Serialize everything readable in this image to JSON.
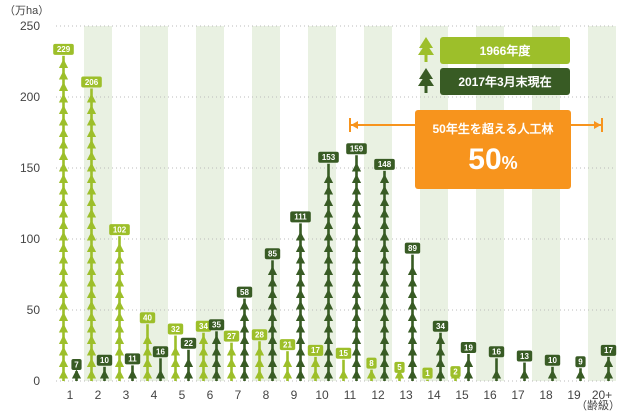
{
  "chart_data": {
    "type": "bar",
    "unit_label": "（万ha）",
    "categories": [
      "1",
      "2",
      "3",
      "4",
      "5",
      "6",
      "7",
      "8",
      "9",
      "10",
      "11",
      "12",
      "13",
      "14",
      "15",
      "16",
      "17",
      "18",
      "19",
      "20+"
    ],
    "x_footnote": "（齢級）",
    "series": [
      {
        "name": "1966年度",
        "color": "#9dbf2a",
        "values": [
          229,
          206,
          102,
          40,
          32,
          34,
          27,
          28,
          21,
          17,
          15,
          8,
          5,
          1,
          2,
          null,
          null,
          null,
          null,
          null
        ]
      },
      {
        "name": "2017年3月末現在",
        "color": "#385b24",
        "values": [
          7,
          10,
          11,
          16,
          22,
          35,
          58,
          85,
          111,
          153,
          159,
          148,
          89,
          34,
          19,
          16,
          13,
          10,
          9,
          17
        ]
      }
    ],
    "ylim": [
      0,
      250
    ],
    "yticks": [
      0,
      50,
      100,
      150,
      200,
      250
    ],
    "grid": "horizontal-dotted",
    "legend_position": "top-right",
    "annotation": {
      "text": "50年生を超える人工林",
      "value": "50",
      "value_unit": "%",
      "range_from": "11",
      "range_to": "20+",
      "color": "#f7941d"
    }
  }
}
